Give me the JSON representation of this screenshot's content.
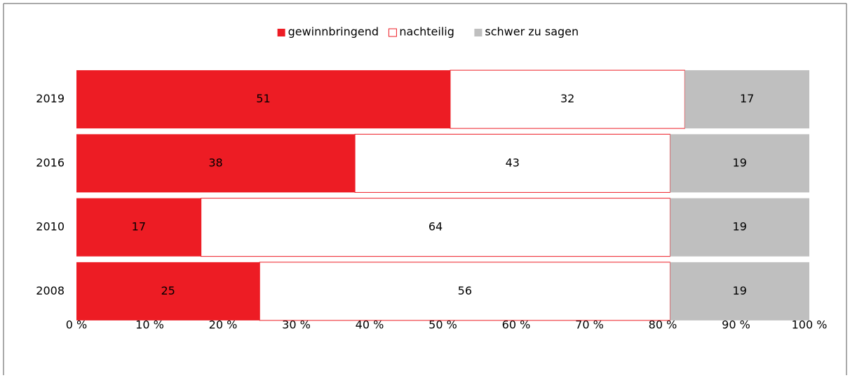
{
  "chart_data": {
    "type": "stacked_barh",
    "categories": [
      "2019",
      "2016",
      "2010",
      "2008"
    ],
    "series": [
      {
        "name": "gewinnbringend",
        "color": "#ed1c24",
        "values": [
          51,
          38,
          17,
          25
        ]
      },
      {
        "name": "nachteilig",
        "color": "#ffffff",
        "values": [
          32,
          43,
          64,
          56
        ]
      },
      {
        "name": "schwer zu sagen",
        "color": "#bfbfbf",
        "values": [
          17,
          19,
          19,
          19
        ]
      }
    ],
    "xlim": [
      0,
      100
    ],
    "xticks": [
      {
        "value": 0,
        "label": "0 %"
      },
      {
        "value": 10,
        "label": "10 %"
      },
      {
        "value": 20,
        "label": "20 %"
      },
      {
        "value": 30,
        "label": "30 %"
      },
      {
        "value": 40,
        "label": "40 %"
      },
      {
        "value": 50,
        "label": "50 %"
      },
      {
        "value": 60,
        "label": "60 %"
      },
      {
        "value": 70,
        "label": "70 %"
      },
      {
        "value": 80,
        "label": "80 %"
      },
      {
        "value": 90,
        "label": "90 %"
      },
      {
        "value": 100,
        "label": "100 %"
      }
    ],
    "legend": "top",
    "outline_color": "#ed1c24"
  }
}
